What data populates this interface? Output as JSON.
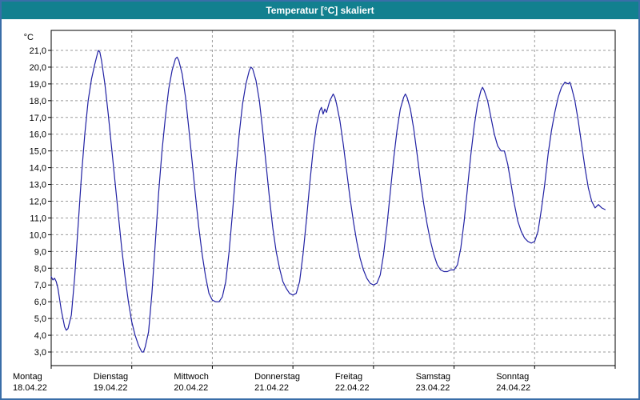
{
  "window": {
    "title": "Temperatur [°C] skaliert"
  },
  "colors": {
    "titlebar_bg": "#12808f",
    "titlebar_text": "#ffffff",
    "page_border": "#3a6ea8",
    "plot_border": "#000000",
    "grid": "#9b9b9b",
    "line": "#2121a3",
    "background": "#ffffff"
  },
  "chart_data": {
    "type": "line",
    "title": "Temperatur [°C] skaliert",
    "ylabel": "°C",
    "xlabel": "",
    "ylim": [
      3,
      21
    ],
    "ytick_step": 1,
    "ytick_labels": [
      "21,0",
      "20,0",
      "19,0",
      "18,0",
      "17,0",
      "16,0",
      "15,0",
      "14,0",
      "13,0",
      "12,0",
      "11,0",
      "10,0",
      "9,0",
      "8,0",
      "7,0",
      "6,0",
      "5,0",
      "4,0",
      "3,0"
    ],
    "grid": true,
    "legend": false,
    "x_axis": {
      "unit": "hours",
      "range": [
        0,
        168
      ],
      "day_width_hours": 24
    },
    "days": [
      {
        "label": "Montag",
        "date": "18.04.22"
      },
      {
        "label": "Dienstag",
        "date": "19.04.22"
      },
      {
        "label": "Mittwoch",
        "date": "20.04.22"
      },
      {
        "label": "Donnerstag",
        "date": "21.04.22"
      },
      {
        "label": "Freitag",
        "date": "22.04.22"
      },
      {
        "label": "Samstag",
        "date": "23.04.22"
      },
      {
        "label": "Sonntag",
        "date": "24.04.22"
      }
    ],
    "series": [
      {
        "name": "Temperatur",
        "color": "#2121a3",
        "points": [
          [
            0,
            7.5
          ],
          [
            0.5,
            7.3
          ],
          [
            1,
            7.4
          ],
          [
            1.5,
            7.2
          ],
          [
            2,
            6.8
          ],
          [
            3,
            5.5
          ],
          [
            4,
            4.5
          ],
          [
            4.5,
            4.3
          ],
          [
            5,
            4.4
          ],
          [
            6,
            5.2
          ],
          [
            7,
            7.5
          ],
          [
            8,
            10.5
          ],
          [
            9,
            13.5
          ],
          [
            10,
            16.0
          ],
          [
            11,
            18.0
          ],
          [
            12,
            19.3
          ],
          [
            13,
            20.2
          ],
          [
            13.5,
            20.6
          ],
          [
            14,
            21.0
          ],
          [
            14.5,
            20.9
          ],
          [
            15,
            20.4
          ],
          [
            16,
            19.0
          ],
          [
            17,
            17.2
          ],
          [
            18,
            15.2
          ],
          [
            19,
            13.2
          ],
          [
            20,
            11.2
          ],
          [
            21,
            9.2
          ],
          [
            22,
            7.5
          ],
          [
            23,
            6.0
          ],
          [
            24,
            4.8
          ],
          [
            25,
            4.0
          ],
          [
            26,
            3.4
          ],
          [
            27,
            3.0
          ],
          [
            27.5,
            3.0
          ],
          [
            28,
            3.3
          ],
          [
            29,
            4.2
          ],
          [
            30,
            6.5
          ],
          [
            31,
            9.5
          ],
          [
            32,
            12.5
          ],
          [
            33,
            15.0
          ],
          [
            34,
            17.0
          ],
          [
            35,
            18.7
          ],
          [
            36,
            19.8
          ],
          [
            37,
            20.5
          ],
          [
            37.5,
            20.6
          ],
          [
            38,
            20.4
          ],
          [
            39,
            19.6
          ],
          [
            40,
            18.2
          ],
          [
            41,
            16.3
          ],
          [
            42,
            14.3
          ],
          [
            43,
            12.3
          ],
          [
            44,
            10.4
          ],
          [
            45,
            8.8
          ],
          [
            46,
            7.5
          ],
          [
            47,
            6.5
          ],
          [
            48,
            6.1
          ],
          [
            49,
            6.0
          ],
          [
            50,
            6.0
          ],
          [
            51,
            6.3
          ],
          [
            52,
            7.2
          ],
          [
            53,
            9.0
          ],
          [
            54,
            11.3
          ],
          [
            55,
            13.8
          ],
          [
            56,
            16.0
          ],
          [
            57,
            17.8
          ],
          [
            58,
            19.0
          ],
          [
            59,
            19.8
          ],
          [
            59.5,
            20.0
          ],
          [
            60,
            19.9
          ],
          [
            61,
            19.2
          ],
          [
            62,
            18.0
          ],
          [
            63,
            16.2
          ],
          [
            64,
            14.2
          ],
          [
            65,
            12.2
          ],
          [
            66,
            10.4
          ],
          [
            67,
            9.0
          ],
          [
            68,
            8.0
          ],
          [
            69,
            7.2
          ],
          [
            70,
            6.8
          ],
          [
            71,
            6.5
          ],
          [
            72,
            6.4
          ],
          [
            73,
            6.5
          ],
          [
            74,
            7.2
          ],
          [
            75,
            8.8
          ],
          [
            76,
            10.8
          ],
          [
            77,
            13.0
          ],
          [
            78,
            15.0
          ],
          [
            79,
            16.5
          ],
          [
            80,
            17.4
          ],
          [
            80.5,
            17.6
          ],
          [
            81,
            17.2
          ],
          [
            81.5,
            17.5
          ],
          [
            82,
            17.3
          ],
          [
            83,
            18.0
          ],
          [
            84,
            18.4
          ],
          [
            84.5,
            18.2
          ],
          [
            85,
            17.8
          ],
          [
            86,
            16.8
          ],
          [
            87,
            15.4
          ],
          [
            88,
            13.8
          ],
          [
            89,
            12.2
          ],
          [
            90,
            10.8
          ],
          [
            91,
            9.6
          ],
          [
            92,
            8.6
          ],
          [
            93,
            7.9
          ],
          [
            94,
            7.4
          ],
          [
            95,
            7.1
          ],
          [
            96,
            7.0
          ],
          [
            97,
            7.1
          ],
          [
            98,
            7.6
          ],
          [
            99,
            8.8
          ],
          [
            100,
            10.5
          ],
          [
            101,
            12.5
          ],
          [
            102,
            14.5
          ],
          [
            103,
            16.2
          ],
          [
            104,
            17.5
          ],
          [
            105,
            18.2
          ],
          [
            105.5,
            18.4
          ],
          [
            106,
            18.2
          ],
          [
            107,
            17.5
          ],
          [
            108,
            16.3
          ],
          [
            109,
            14.8
          ],
          [
            110,
            13.2
          ],
          [
            111,
            11.8
          ],
          [
            112,
            10.6
          ],
          [
            113,
            9.6
          ],
          [
            114,
            8.8
          ],
          [
            115,
            8.2
          ],
          [
            116,
            7.9
          ],
          [
            117,
            7.8
          ],
          [
            118,
            7.8
          ],
          [
            119,
            7.9
          ],
          [
            120,
            7.9
          ],
          [
            121,
            8.2
          ],
          [
            122,
            9.2
          ],
          [
            123,
            10.8
          ],
          [
            124,
            12.8
          ],
          [
            125,
            14.8
          ],
          [
            126,
            16.5
          ],
          [
            127,
            17.8
          ],
          [
            128,
            18.6
          ],
          [
            128.5,
            18.8
          ],
          [
            129,
            18.6
          ],
          [
            130,
            18.0
          ],
          [
            131,
            17.0
          ],
          [
            132,
            16.0
          ],
          [
            133,
            15.3
          ],
          [
            134,
            15.0
          ],
          [
            135,
            15.0
          ],
          [
            136,
            14.2
          ],
          [
            137,
            13.0
          ],
          [
            138,
            11.8
          ],
          [
            139,
            10.8
          ],
          [
            140,
            10.2
          ],
          [
            141,
            9.8
          ],
          [
            142,
            9.6
          ],
          [
            143,
            9.5
          ],
          [
            144,
            9.6
          ],
          [
            145,
            10.2
          ],
          [
            146,
            11.5
          ],
          [
            147,
            13.0
          ],
          [
            148,
            14.8
          ],
          [
            149,
            16.2
          ],
          [
            150,
            17.3
          ],
          [
            151,
            18.2
          ],
          [
            152,
            18.8
          ],
          [
            153,
            19.1
          ],
          [
            154,
            19.0
          ],
          [
            154.5,
            19.1
          ],
          [
            155,
            18.8
          ],
          [
            156,
            18.0
          ],
          [
            157,
            16.8
          ],
          [
            158,
            15.4
          ],
          [
            159,
            14.0
          ],
          [
            160,
            12.8
          ],
          [
            161,
            12.0
          ],
          [
            162,
            11.6
          ],
          [
            163,
            11.8
          ],
          [
            164,
            11.6
          ],
          [
            165,
            11.5
          ]
        ]
      }
    ]
  }
}
